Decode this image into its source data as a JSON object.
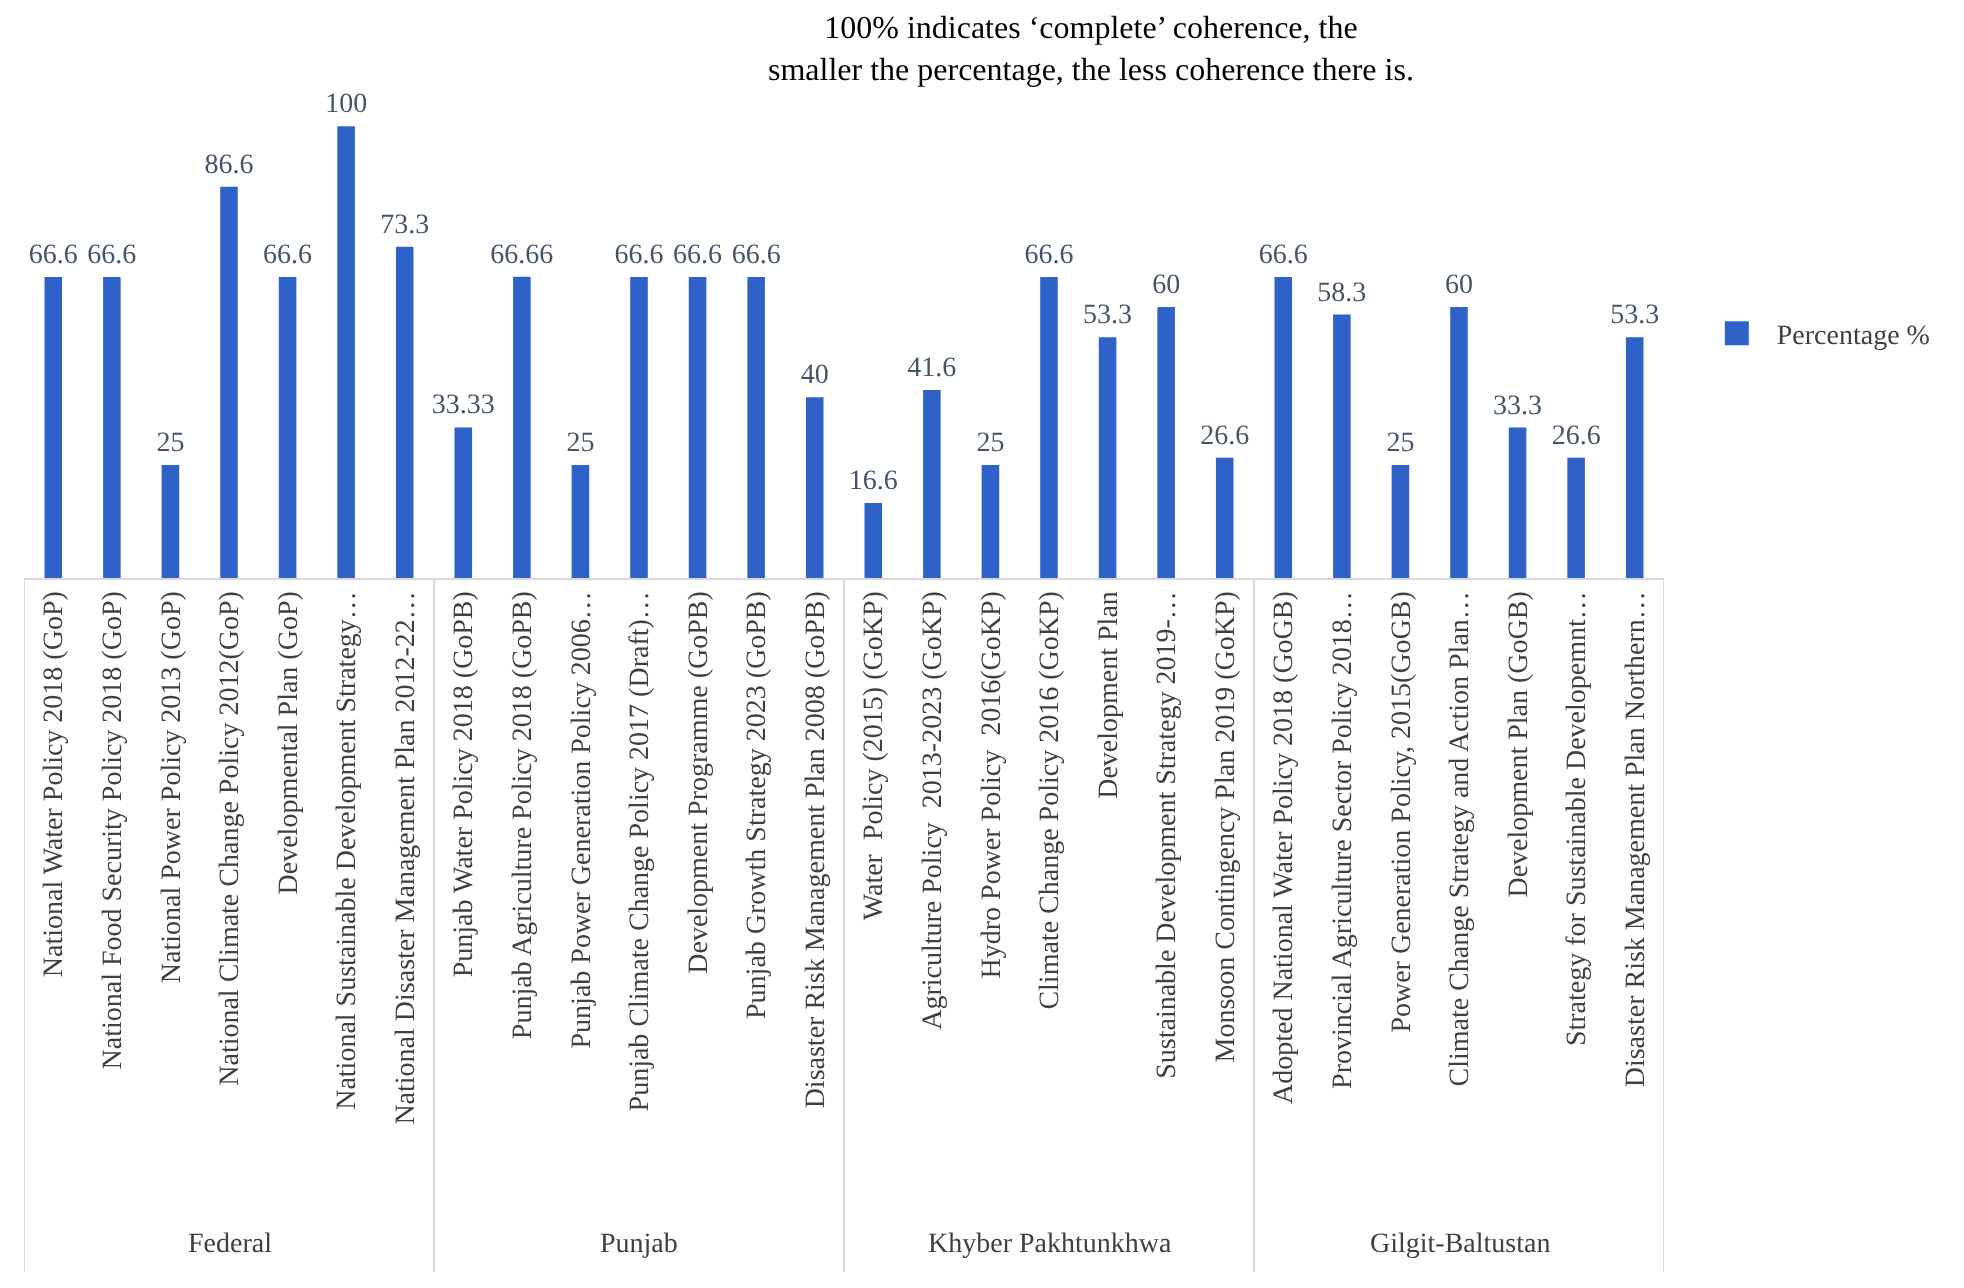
{
  "chart_data": {
    "type": "bar",
    "title": "100% indicates ‘complete’ coherence, the\nsmaller the percentage, the less coherence there is.",
    "categories": [
      "National Water Policy 2018 (GoP)",
      "National Food Security Policy 2018 (GoP)",
      "National Power Policy 2013 (GoP)",
      "National Climate Change Policy 2012(GoP)",
      "Developmental Plan (GoP)",
      "National Sustainable Development Strategy…",
      "National Disaster Management Plan 2012-22…",
      "Punjab Water Policy 2018 (GoPB)",
      "Punjab Agriculture Policy 2018 (GoPB)",
      "Punjab Power Generation Policy 2006…",
      "Punjab Climate Change Policy 2017 (Draft)…",
      "Development Programme (GoPB)",
      "Punjab Growth Strategy 2023 (GoPB)",
      "Disaster Risk Management Plan 2008 (GoPB)",
      "Water  Policy (2015) (GoKP)",
      "Agriculture Policy  2013-2023 (GoKP)",
      "Hydro Power Policy  2016(GoKP)",
      "Climate Change Policy 2016 (GoKP)",
      "Development Plan",
      "Sustainable Development Strategy 2019-…",
      "Monsoon Contingency Plan 2019 (GoKP)",
      "Adopted National Water Policy 2018 (GoGB)",
      "Provincial Agriculture Sector Policy 2018…",
      "Power Generation Policy, 2015(GoGB)",
      "Climate Change Strategy and Action Plan…",
      "Development Plan (GoGB)",
      "Strategy for Sustainable Developemnt…",
      "Disaster Risk Management Plan Northern…"
    ],
    "series": [
      {
        "name": "Percentage %",
        "color": "#2f62c9",
        "values": [
          66.6,
          66.6,
          25,
          86.6,
          66.6,
          100,
          73.3,
          33.33,
          66.66,
          25,
          66.6,
          66.6,
          66.6,
          40,
          16.6,
          41.6,
          25,
          66.6,
          53.3,
          60,
          26.6,
          66.6,
          58.3,
          25,
          60,
          33.3,
          26.6,
          53.3
        ]
      }
    ],
    "annotations": [
      "Federal",
      "Punjab",
      "Khyber Pakhtunkhwa",
      "Gilgit-Baltustan"
    ],
    "data_labels": true,
    "legend": "right"
  }
}
